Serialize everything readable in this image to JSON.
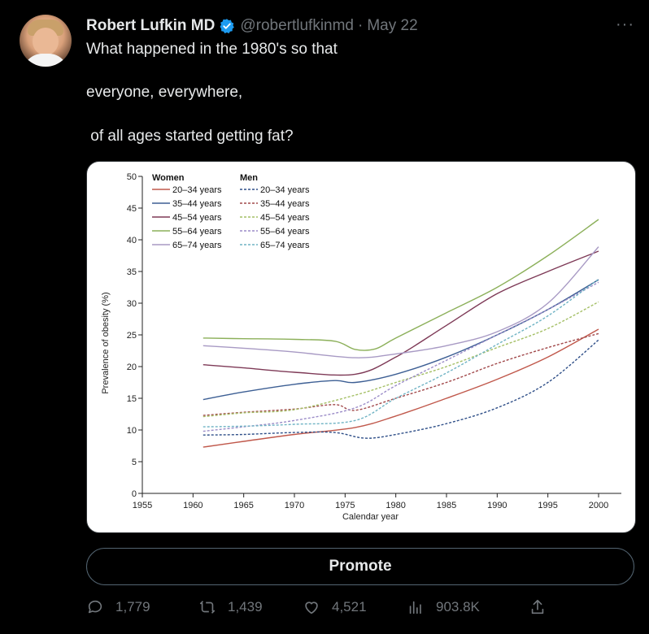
{
  "tweet": {
    "author_name": "Robert Lufkin MD",
    "handle": "@robertlufkinmd",
    "separator": "·",
    "date": "May 22",
    "more_label": "···",
    "text_lines": [
      "What happened in the 1980's so that",
      "everyone, everywhere,",
      " of all ages started getting fat?"
    ]
  },
  "promote_label": "Promote",
  "actions": {
    "replies": "1,779",
    "retweets": "1,439",
    "likes": "4,521",
    "views": "903.8K"
  },
  "icons": {
    "verified": "verified-badge-icon",
    "reply": "reply-icon",
    "retweet": "retweet-icon",
    "like": "heart-icon",
    "views": "views-icon",
    "share": "share-icon"
  },
  "colors": {
    "verified": "#1d9bf0",
    "muted": "#71767b"
  },
  "chart_data": {
    "type": "line",
    "xlabel": "Calendar year",
    "ylabel": "Prevalence of obesity (%)",
    "xlim": [
      1955,
      2000
    ],
    "ylim": [
      0,
      50
    ],
    "xticks": [
      1955,
      1960,
      1965,
      1970,
      1975,
      1980,
      1985,
      1990,
      1995,
      2000
    ],
    "yticks": [
      0,
      5,
      10,
      15,
      20,
      25,
      30,
      35,
      40,
      45,
      50
    ],
    "legend_groups": [
      "Women",
      "Men"
    ],
    "legend_placement": "top-left",
    "grid": false,
    "series": [
      {
        "name": "20–34 years",
        "group": "Women",
        "color": "#c0584b",
        "dash": false,
        "points": [
          [
            1961,
            7.3
          ],
          [
            1965,
            8.2
          ],
          [
            1970,
            9.3
          ],
          [
            1976,
            10.4
          ],
          [
            1980,
            12.2
          ],
          [
            1985,
            15.0
          ],
          [
            1990,
            18.0
          ],
          [
            1995,
            21.5
          ],
          [
            2000,
            25.9
          ]
        ]
      },
      {
        "name": "35–44 years",
        "group": "Women",
        "color": "#3d5f94",
        "dash": false,
        "points": [
          [
            1961,
            14.8
          ],
          [
            1965,
            16.0
          ],
          [
            1970,
            17.2
          ],
          [
            1974,
            17.8
          ],
          [
            1976,
            17.5
          ],
          [
            1980,
            18.8
          ],
          [
            1985,
            21.5
          ],
          [
            1990,
            25.0
          ],
          [
            1995,
            29.0
          ],
          [
            2000,
            33.7
          ]
        ]
      },
      {
        "name": "45–54 years",
        "group": "Women",
        "color": "#7e3a57",
        "dash": false,
        "points": [
          [
            1961,
            20.3
          ],
          [
            1965,
            19.8
          ],
          [
            1970,
            19.1
          ],
          [
            1976,
            18.8
          ],
          [
            1980,
            21.5
          ],
          [
            1985,
            26.5
          ],
          [
            1990,
            31.5
          ],
          [
            1995,
            35.0
          ],
          [
            2000,
            38.2
          ]
        ]
      },
      {
        "name": "55–64 years",
        "group": "Women",
        "color": "#8cb05a",
        "dash": false,
        "points": [
          [
            1961,
            24.5
          ],
          [
            1965,
            24.4
          ],
          [
            1970,
            24.3
          ],
          [
            1974,
            24.0
          ],
          [
            1976,
            22.7
          ],
          [
            1978,
            22.8
          ],
          [
            1980,
            24.5
          ],
          [
            1985,
            28.5
          ],
          [
            1990,
            32.5
          ],
          [
            1995,
            37.5
          ],
          [
            2000,
            43.2
          ]
        ]
      },
      {
        "name": "65–74 years",
        "group": "Women",
        "color": "#a89ac4",
        "dash": false,
        "points": [
          [
            1961,
            23.3
          ],
          [
            1965,
            22.9
          ],
          [
            1970,
            22.3
          ],
          [
            1976,
            21.4
          ],
          [
            1980,
            22.0
          ],
          [
            1985,
            23.3
          ],
          [
            1990,
            25.5
          ],
          [
            1995,
            30.0
          ],
          [
            2000,
            38.9
          ]
        ]
      },
      {
        "name": "20–34 years",
        "group": "Men",
        "color": "#2f4f88",
        "dash": true,
        "points": [
          [
            1961,
            9.2
          ],
          [
            1965,
            9.3
          ],
          [
            1970,
            9.6
          ],
          [
            1974,
            9.6
          ],
          [
            1977,
            8.7
          ],
          [
            1980,
            9.3
          ],
          [
            1985,
            11.0
          ],
          [
            1990,
            13.5
          ],
          [
            1995,
            17.5
          ],
          [
            2000,
            24.2
          ]
        ]
      },
      {
        "name": "35–44 years",
        "group": "Men",
        "color": "#a1484a",
        "dash": true,
        "points": [
          [
            1961,
            12.3
          ],
          [
            1965,
            12.8
          ],
          [
            1970,
            13.3
          ],
          [
            1974,
            14.0
          ],
          [
            1976,
            13.1
          ],
          [
            1980,
            15.0
          ],
          [
            1985,
            17.5
          ],
          [
            1990,
            20.5
          ],
          [
            1995,
            23.0
          ],
          [
            2000,
            25.2
          ]
        ]
      },
      {
        "name": "45–54 years",
        "group": "Men",
        "color": "#a4bf65",
        "dash": true,
        "points": [
          [
            1961,
            12.1
          ],
          [
            1965,
            12.7
          ],
          [
            1970,
            13.2
          ],
          [
            1976,
            15.5
          ],
          [
            1980,
            17.5
          ],
          [
            1985,
            20.0
          ],
          [
            1990,
            23.0
          ],
          [
            1995,
            26.0
          ],
          [
            2000,
            30.2
          ]
        ]
      },
      {
        "name": "55–64 years",
        "group": "Men",
        "color": "#9b8cc8",
        "dash": true,
        "points": [
          [
            1961,
            9.8
          ],
          [
            1965,
            10.5
          ],
          [
            1970,
            11.5
          ],
          [
            1976,
            13.5
          ],
          [
            1980,
            17.0
          ],
          [
            1985,
            21.0
          ],
          [
            1990,
            25.0
          ],
          [
            1995,
            29.0
          ],
          [
            2000,
            33.3
          ]
        ]
      },
      {
        "name": "65–74 years",
        "group": "Men",
        "color": "#6fb3c4",
        "dash": true,
        "points": [
          [
            1961,
            10.5
          ],
          [
            1965,
            10.6
          ],
          [
            1970,
            10.9
          ],
          [
            1976,
            11.5
          ],
          [
            1980,
            15.0
          ],
          [
            1985,
            19.0
          ],
          [
            1990,
            23.5
          ],
          [
            1995,
            28.0
          ],
          [
            2000,
            33.8
          ]
        ]
      }
    ]
  }
}
